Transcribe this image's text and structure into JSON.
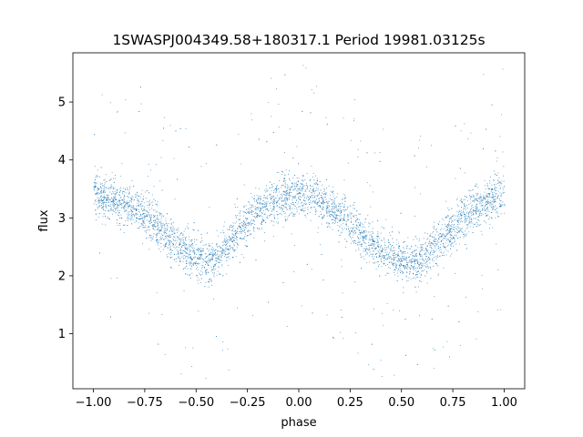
{
  "chart_data": {
    "type": "scatter",
    "title": "1SWASPJ004349.58+180317.1 Period 19981.03125s",
    "xlabel": "phase",
    "ylabel": "flux",
    "xlim": [
      -1.1,
      1.1
    ],
    "ylim": [
      0.05,
      5.85
    ],
    "x_ticks": [
      -1.0,
      -0.75,
      -0.5,
      -0.25,
      0.0,
      0.25,
      0.5,
      0.75,
      1.0
    ],
    "x_tick_labels": [
      "−1.00",
      "−0.75",
      "−0.50",
      "−0.25",
      "0.00",
      "0.25",
      "0.50",
      "0.75",
      "1.00"
    ],
    "y_ticks": [
      1,
      2,
      3,
      4,
      5
    ],
    "y_tick_labels": [
      "1",
      "2",
      "3",
      "4",
      "5"
    ],
    "grid": false,
    "legend": "none",
    "point_color": "#1f77b4",
    "series": [
      {
        "x": [
          -1.0,
          -0.9,
          -0.8,
          -0.7,
          -0.6,
          -0.5,
          -0.45,
          -0.4,
          -0.3,
          -0.2,
          -0.1,
          0.0,
          0.05,
          0.1,
          0.2,
          0.3,
          0.4,
          0.5,
          0.55,
          0.6,
          0.7,
          0.8,
          0.9,
          1.0
        ],
        "y": [
          3.4,
          3.3,
          3.2,
          2.9,
          2.55,
          2.3,
          2.25,
          2.3,
          2.75,
          3.15,
          3.35,
          3.4,
          3.4,
          3.3,
          3.05,
          2.75,
          2.45,
          2.25,
          2.2,
          2.3,
          2.65,
          3.0,
          3.25,
          3.4
        ],
        "scatter_sigma": 0.18
      }
    ]
  }
}
